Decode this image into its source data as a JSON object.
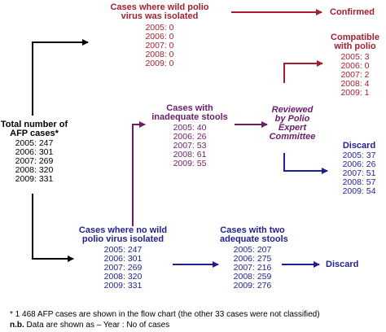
{
  "wild_isolated": {
    "title1": "Cases where wild polio",
    "title2": "virus was isolated",
    "rows": [
      "2005: 0",
      "2006: 0",
      "2007: 0",
      "2008: 0",
      "2009: 0"
    ]
  },
  "confirmed": "Confirmed",
  "compatible": {
    "title1": "Compatible",
    "title2": "with polio",
    "rows": [
      "2005: 3",
      "2006: 0",
      "2007: 2",
      "2008: 4",
      "2009: 1"
    ]
  },
  "total": {
    "title1": "Total number of",
    "title2": "AFP cases*",
    "rows": [
      "2005: 247",
      "2006: 301",
      "2007: 269",
      "2008: 320",
      "2009: 331"
    ]
  },
  "inadequate": {
    "title1": "Cases with",
    "title2": "inadequate stools",
    "rows": [
      "2005: 40",
      "2006: 26",
      "2007: 53",
      "2008: 61",
      "2009: 55"
    ]
  },
  "reviewed": {
    "line1": "Reviewed",
    "line2": "by Polio",
    "line3": "Expert",
    "line4": "Committee"
  },
  "discard_upper": {
    "title": "Discard",
    "rows": [
      "2005: 37",
      "2006: 26",
      "2007: 51",
      "2008: 57",
      "2009: 54"
    ]
  },
  "no_wild": {
    "title1": "Cases where no wild",
    "title2": "polio virus isolated",
    "rows": [
      "2005: 247",
      "2006: 301",
      "2007: 269",
      "2008: 320",
      "2009: 331"
    ]
  },
  "two_adequate": {
    "title1": "Cases with two",
    "title2": "adequate stools",
    "rows": [
      "2005: 207",
      "2006: 275",
      "2007: 216",
      "2008: 259",
      "2009: 276"
    ]
  },
  "discard_lower": "Discard",
  "footnote1": "* 1 468 AFP cases are shown in the flow chart (the other 33 cases were not classified)",
  "footnote2_prefix": "n.b.",
  "footnote2_rest": " Data are shown as – Year : No of cases",
  "colors": {
    "red": "#a31f2f",
    "navy": "#1f1f8f",
    "purple": "#6b1d6b",
    "black": "#000000"
  }
}
